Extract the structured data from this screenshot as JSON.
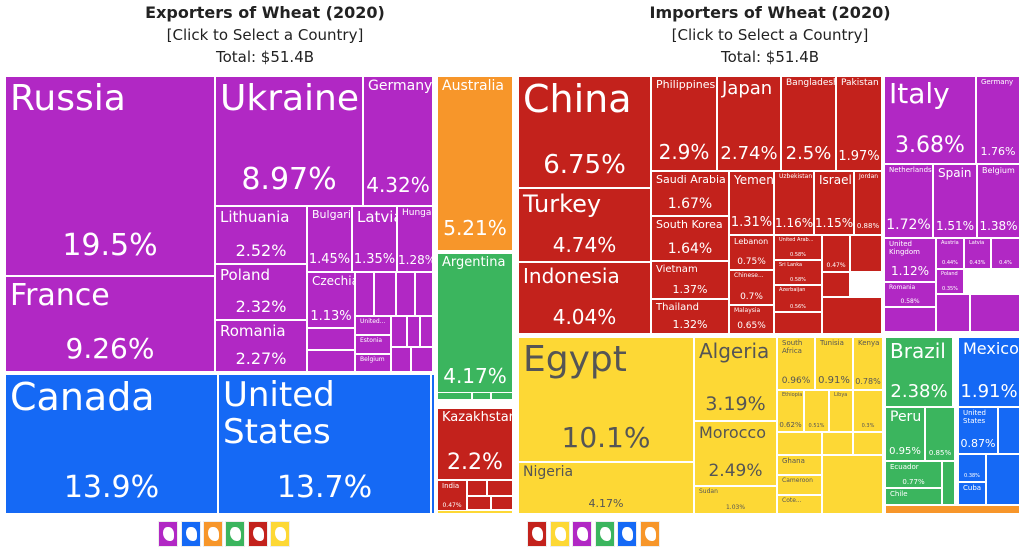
{
  "exporters": {
    "title": "Exporters of Wheat (2020)",
    "subtitle": "[Click to Select a Country]",
    "total": "Total: $51.4B",
    "cells": [
      {
        "name": "Russia",
        "pct": "19.5%",
        "color": "#b128c4"
      },
      {
        "name": "France",
        "pct": "9.26%",
        "color": "#b128c4"
      },
      {
        "name": "Ukraine",
        "pct": "8.97%",
        "color": "#b128c4"
      },
      {
        "name": "Germany",
        "pct": "4.32%",
        "color": "#b128c4"
      },
      {
        "name": "Lithuania",
        "pct": "2.52%",
        "color": "#b128c4"
      },
      {
        "name": "Poland",
        "pct": "2.32%",
        "color": "#b128c4"
      },
      {
        "name": "Romania",
        "pct": "2.27%",
        "color": "#b128c4"
      },
      {
        "name": "Bulgaria",
        "pct": "1.45%",
        "color": "#b128c4"
      },
      {
        "name": "Latvia",
        "pct": "1.35%",
        "color": "#b128c4"
      },
      {
        "name": "Hungary",
        "pct": "1.28%",
        "color": "#b128c4"
      },
      {
        "name": "Czechia",
        "pct": "1.13%",
        "color": "#b128c4"
      },
      {
        "name": "United...",
        "pct": "",
        "color": "#b128c4"
      },
      {
        "name": "Estonia",
        "pct": "",
        "color": "#b128c4"
      },
      {
        "name": "Belgium",
        "pct": "",
        "color": "#b128c4"
      },
      {
        "name": "Canada",
        "pct": "13.9%",
        "color": "#1569f5"
      },
      {
        "name": "United States",
        "pct": "13.7%",
        "color": "#1569f5"
      },
      {
        "name": "Australia",
        "pct": "5.21%",
        "color": "#f7962a"
      },
      {
        "name": "Argentina",
        "pct": "4.17%",
        "color": "#3bb55e"
      },
      {
        "name": "Kazakhstan",
        "pct": "2.2%",
        "color": "#c3221c"
      },
      {
        "name": "India",
        "pct": "0.47%",
        "color": "#c3221c"
      }
    ],
    "continent_icons": [
      {
        "name": "europe",
        "color": "#b128c4"
      },
      {
        "name": "north-america",
        "color": "#1569f5"
      },
      {
        "name": "oceania",
        "color": "#f7962a"
      },
      {
        "name": "south-america",
        "color": "#3bb55e"
      },
      {
        "name": "asia",
        "color": "#c3221c"
      },
      {
        "name": "africa",
        "color": "#fdd835"
      }
    ]
  },
  "importers": {
    "title": "Importers of Wheat (2020)",
    "subtitle": "[Click to Select a Country]",
    "total": "Total: $51.4B",
    "cells": [
      {
        "name": "China",
        "pct": "6.75%",
        "color": "#c3221c"
      },
      {
        "name": "Turkey",
        "pct": "4.74%",
        "color": "#c3221c"
      },
      {
        "name": "Indonesia",
        "pct": "4.04%",
        "color": "#c3221c"
      },
      {
        "name": "Philippines",
        "pct": "2.9%",
        "color": "#c3221c"
      },
      {
        "name": "Japan",
        "pct": "2.74%",
        "color": "#c3221c"
      },
      {
        "name": "Bangladesh",
        "pct": "2.5%",
        "color": "#c3221c"
      },
      {
        "name": "Pakistan",
        "pct": "1.97%",
        "color": "#c3221c"
      },
      {
        "name": "Saudi Arabia",
        "pct": "1.67%",
        "color": "#c3221c"
      },
      {
        "name": "South Korea",
        "pct": "1.64%",
        "color": "#c3221c"
      },
      {
        "name": "Vietnam",
        "pct": "1.37%",
        "color": "#c3221c"
      },
      {
        "name": "Thailand",
        "pct": "1.32%",
        "color": "#c3221c"
      },
      {
        "name": "Yemen",
        "pct": "1.31%",
        "color": "#c3221c"
      },
      {
        "name": "Uzbekistan",
        "pct": "1.16%",
        "color": "#c3221c"
      },
      {
        "name": "Israel",
        "pct": "1.15%",
        "color": "#c3221c"
      },
      {
        "name": "Jordan",
        "pct": "0.88%",
        "color": "#c3221c"
      },
      {
        "name": "Lebanon",
        "pct": "0.75%",
        "color": "#c3221c"
      },
      {
        "name": "Chinese...",
        "pct": "0.7%",
        "color": "#c3221c"
      },
      {
        "name": "Malaysia",
        "pct": "0.65%",
        "color": "#c3221c"
      },
      {
        "name": "United Arab...",
        "pct": "0.58%",
        "color": "#c3221c"
      },
      {
        "name": "Sri Lanka",
        "pct": "0.58%",
        "color": "#c3221c"
      },
      {
        "name": "Azerbaijan",
        "pct": "0.56%",
        "color": "#c3221c"
      },
      {
        "name": "",
        "pct": "0.47%",
        "color": "#c3221c"
      },
      {
        "name": "Italy",
        "pct": "3.68%",
        "color": "#b128c4"
      },
      {
        "name": "Germany",
        "pct": "1.76%",
        "color": "#b128c4"
      },
      {
        "name": "Netherlands",
        "pct": "1.72%",
        "color": "#b128c4"
      },
      {
        "name": "Spain",
        "pct": "1.51%",
        "color": "#b128c4"
      },
      {
        "name": "Belgium",
        "pct": "1.38%",
        "color": "#b128c4"
      },
      {
        "name": "United Kingdom",
        "pct": "1.12%",
        "color": "#b128c4"
      },
      {
        "name": "Romania",
        "pct": "0.58%",
        "color": "#b128c4"
      },
      {
        "name": "Austria",
        "pct": "0.44%",
        "color": "#b128c4"
      },
      {
        "name": "Latvia",
        "pct": "0.43%",
        "color": "#b128c4"
      },
      {
        "name": "",
        "pct": "0.4%",
        "color": "#b128c4"
      },
      {
        "name": "Poland",
        "pct": "0.35%",
        "color": "#b128c4"
      },
      {
        "name": "Egypt",
        "pct": "10.1%",
        "color": "#fdd835"
      },
      {
        "name": "Nigeria",
        "pct": "4.17%",
        "color": "#fdd835"
      },
      {
        "name": "Algeria",
        "pct": "3.19%",
        "color": "#fdd835"
      },
      {
        "name": "Morocco",
        "pct": "2.49%",
        "color": "#fdd835"
      },
      {
        "name": "Sudan",
        "pct": "1.03%",
        "color": "#fdd835"
      },
      {
        "name": "South Africa",
        "pct": "0.96%",
        "color": "#fdd835"
      },
      {
        "name": "Tunisia",
        "pct": "0.91%",
        "color": "#fdd835"
      },
      {
        "name": "Kenya",
        "pct": "0.78%",
        "color": "#fdd835"
      },
      {
        "name": "Ethiopia",
        "pct": "0.62%",
        "color": "#fdd835"
      },
      {
        "name": "",
        "pct": "0.51%",
        "color": "#fdd835"
      },
      {
        "name": "Libya",
        "pct": "",
        "color": "#fdd835"
      },
      {
        "name": "",
        "pct": "0.3%",
        "color": "#fdd835"
      },
      {
        "name": "Ghana",
        "pct": "",
        "color": "#fdd835"
      },
      {
        "name": "Cameroon",
        "pct": "",
        "color": "#fdd835"
      },
      {
        "name": "Cote...",
        "pct": "",
        "color": "#fdd835"
      },
      {
        "name": "Brazil",
        "pct": "2.38%",
        "color": "#3bb55e"
      },
      {
        "name": "Peru",
        "pct": "0.95%",
        "color": "#3bb55e"
      },
      {
        "name": "",
        "pct": "0.85%",
        "color": "#3bb55e"
      },
      {
        "name": "Ecuador",
        "pct": "0.77%",
        "color": "#3bb55e"
      },
      {
        "name": "Chile",
        "pct": "",
        "color": "#3bb55e"
      },
      {
        "name": "Mexico",
        "pct": "1.91%",
        "color": "#1569f5"
      },
      {
        "name": "United States",
        "pct": "0.87%",
        "color": "#1569f5"
      },
      {
        "name": "",
        "pct": "0.38%",
        "color": "#1569f5"
      },
      {
        "name": "Cuba",
        "pct": "",
        "color": "#1569f5"
      }
    ],
    "continent_icons": [
      {
        "name": "asia",
        "color": "#c3221c"
      },
      {
        "name": "africa",
        "color": "#fdd835"
      },
      {
        "name": "europe",
        "color": "#b128c4"
      },
      {
        "name": "south-america",
        "color": "#3bb55e"
      },
      {
        "name": "north-america",
        "color": "#1569f5"
      },
      {
        "name": "oceania",
        "color": "#f7962a"
      }
    ]
  }
}
